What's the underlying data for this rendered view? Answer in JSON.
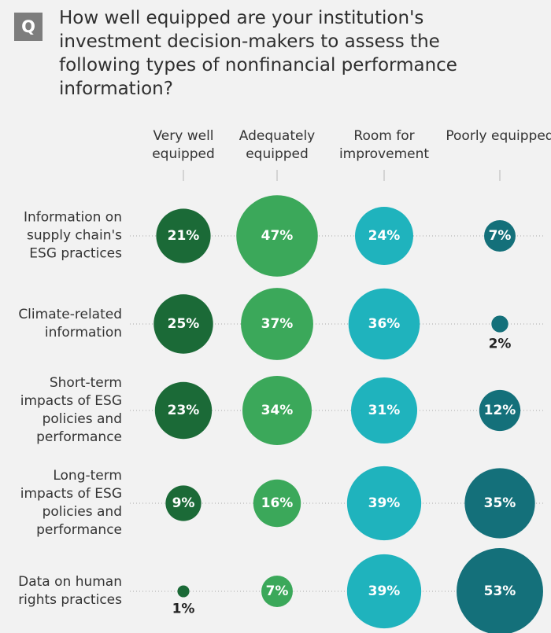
{
  "chart_data": {
    "type": "bubble",
    "badge": "Q",
    "title": "How well equipped are your institution's investment decision-makers to assess the following types of nonfinancial performance information?",
    "categories": [
      "Information on supply chain's ESG practices",
      "Climate-related information",
      "Short-term impacts of ESG policies and performance",
      "Long-term impacts of ESG policies and performance",
      "Data on human rights practices"
    ],
    "series": [
      {
        "name": "Very well equipped",
        "color": "#1b6a37",
        "values": [
          21,
          25,
          23,
          9,
          1
        ],
        "value_labels": [
          "21%",
          "25%",
          "23%",
          "9%",
          "1%"
        ]
      },
      {
        "name": "Adequately equipped",
        "color": "#3ba85a",
        "values": [
          47,
          37,
          34,
          16,
          7
        ],
        "value_labels": [
          "47%",
          "37%",
          "34%",
          "16%",
          "7%"
        ]
      },
      {
        "name": "Room for improvement",
        "color": "#1fb3bd",
        "values": [
          24,
          36,
          31,
          39,
          39
        ],
        "value_labels": [
          "24%",
          "36%",
          "31%",
          "39%",
          "39%"
        ]
      },
      {
        "name": "Poorly equipped",
        "color": "#14707a",
        "values": [
          7,
          2,
          12,
          35,
          53
        ],
        "value_labels": [
          "7%",
          "2%",
          "12%",
          "35%",
          "53%"
        ]
      }
    ]
  }
}
